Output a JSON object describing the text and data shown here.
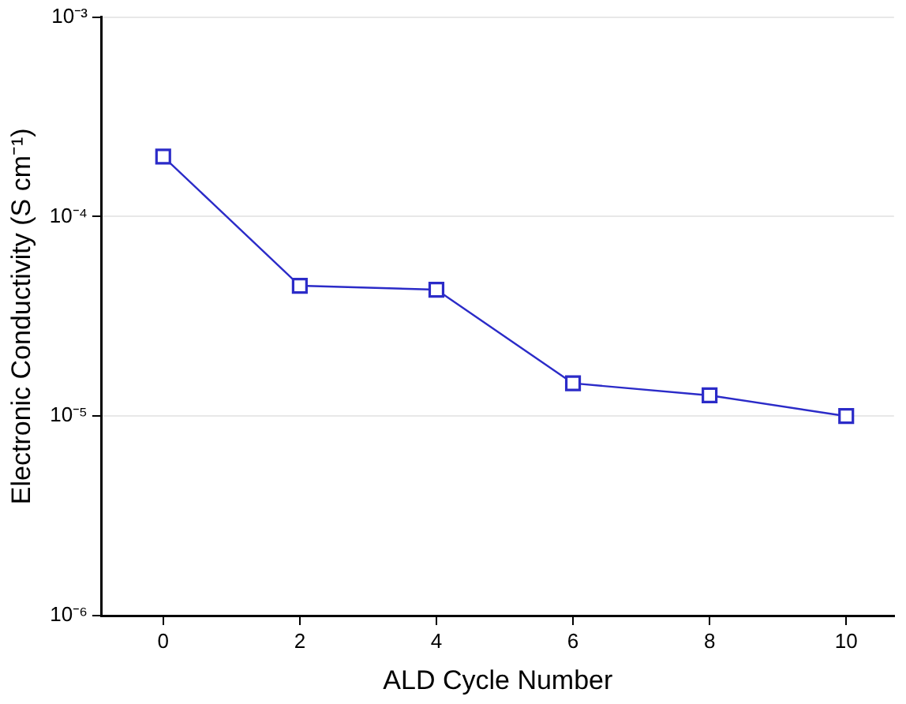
{
  "chart_data": {
    "type": "line",
    "xlabel": "ALD Cycle Number",
    "ylabel": "Electronic Conductivity (S cm⁻¹)",
    "x": [
      0,
      2,
      4,
      6,
      8,
      10
    ],
    "series": [
      {
        "color": "#2b2bc8",
        "values": [
          0.0002,
          4.5e-05,
          4.3e-05,
          1.46e-05,
          1.27e-05,
          1e-05
        ]
      }
    ],
    "log": "y",
    "xlim": [
      -0.9,
      10.7
    ],
    "xticks": [
      0,
      2,
      4,
      6,
      8,
      10
    ],
    "ylim": [
      1e-06,
      0.001
    ],
    "yticks": [
      {
        "value": 1e-06,
        "label": "10⁻⁶"
      },
      {
        "value": 1e-05,
        "label": "10⁻⁵"
      },
      {
        "value": 0.0001,
        "label": "10⁻⁴"
      },
      {
        "value": 0.001,
        "label": "10⁻³"
      }
    ],
    "grid": "y",
    "marker": "square",
    "line_style": "solid",
    "legend": false
  }
}
